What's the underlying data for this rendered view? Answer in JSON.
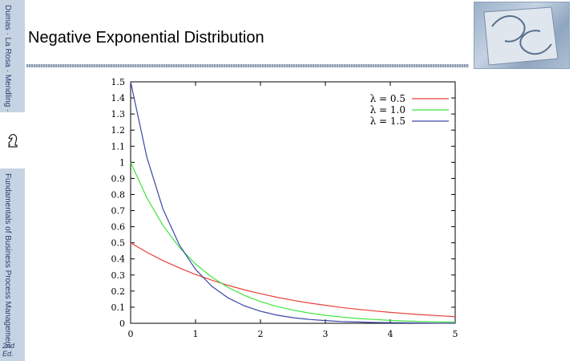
{
  "slide": {
    "title": "Negative Exponential Distribution",
    "sidebar_top_text": "Dumas · La Rosa · Mendling · Reijers",
    "sidebar_main_text": "Fundamentals of Business Process Management",
    "edition": "2nd Ed."
  },
  "chart_data": {
    "type": "line",
    "title": "",
    "xlabel": "",
    "ylabel": "",
    "xlim": [
      0,
      5
    ],
    "ylim": [
      0,
      1.5
    ],
    "x_ticks": [
      "0",
      "1",
      "2",
      "3",
      "4",
      "5"
    ],
    "y_ticks": [
      "0",
      "0.1",
      "0.2",
      "0.3",
      "0.4",
      "0.5",
      "0.6",
      "0.7",
      "0.8",
      "0.9",
      "1",
      "1.1",
      "1.2",
      "1.3",
      "1.4",
      "1.5"
    ],
    "legend_position": "top-right",
    "grid": false,
    "x": [
      0,
      0.25,
      0.5,
      0.75,
      1,
      1.25,
      1.5,
      1.75,
      2,
      2.25,
      2.5,
      2.75,
      3,
      3.25,
      3.5,
      3.75,
      4,
      4.25,
      4.5,
      4.75,
      5
    ],
    "series": [
      {
        "name": "λ = 0.5",
        "color": "#e8413a",
        "values": [
          0.5,
          0.441,
          0.389,
          0.344,
          0.303,
          0.268,
          0.236,
          0.208,
          0.184,
          0.162,
          0.143,
          0.126,
          0.112,
          0.098,
          0.087,
          0.077,
          0.068,
          0.06,
          0.053,
          0.047,
          0.041
        ]
      },
      {
        "name": "λ = 1.0",
        "color": "#3ce63c",
        "values": [
          1.0,
          0.779,
          0.607,
          0.472,
          0.368,
          0.287,
          0.223,
          0.174,
          0.135,
          0.105,
          0.082,
          0.064,
          0.05,
          0.039,
          0.03,
          0.024,
          0.018,
          0.014,
          0.011,
          0.009,
          0.007
        ]
      },
      {
        "name": "λ = 1.5",
        "color": "#3c46a8",
        "values": [
          1.5,
          1.031,
          0.708,
          0.487,
          0.335,
          0.23,
          0.158,
          0.109,
          0.075,
          0.051,
          0.035,
          0.024,
          0.017,
          0.011,
          0.008,
          0.005,
          0.004,
          0.003,
          0.002,
          0.001,
          0.001
        ]
      }
    ]
  }
}
